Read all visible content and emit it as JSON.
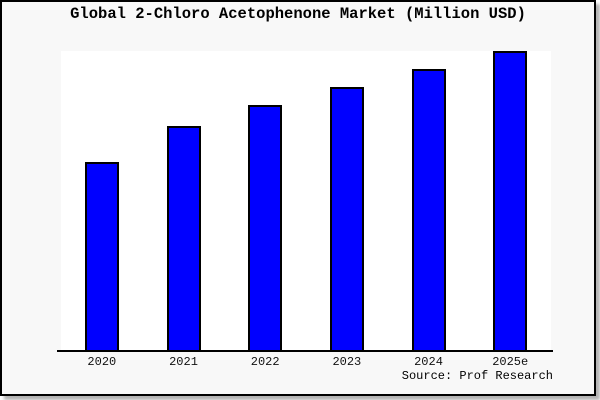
{
  "title": "Global 2-Chloro Acetophenone Market (Million USD)",
  "source": "Source: Prof Research",
  "chart_data": {
    "type": "bar",
    "title": "Global 2-Chloro Acetophenone Market (Million USD)",
    "categories": [
      "2020",
      "2021",
      "2022",
      "2023",
      "2024",
      "2025e"
    ],
    "values": [
      63,
      75,
      82,
      88,
      94,
      100
    ],
    "xlabel": "",
    "ylabel": "",
    "ylim": [
      0,
      100
    ],
    "y_tick_labels_visible": false,
    "grid": false,
    "legend": false,
    "note": "No y-axis tick labels are shown in the image; values are bar heights normalized to 2025e = 100."
  },
  "colors": {
    "background": "#f8f8f8",
    "plot_background": "#ffffff",
    "bar_fill": "#0000ff",
    "bar_edge": "#000000",
    "axis_line": "#000000",
    "frame_border": "#000000",
    "text": "#000000"
  }
}
